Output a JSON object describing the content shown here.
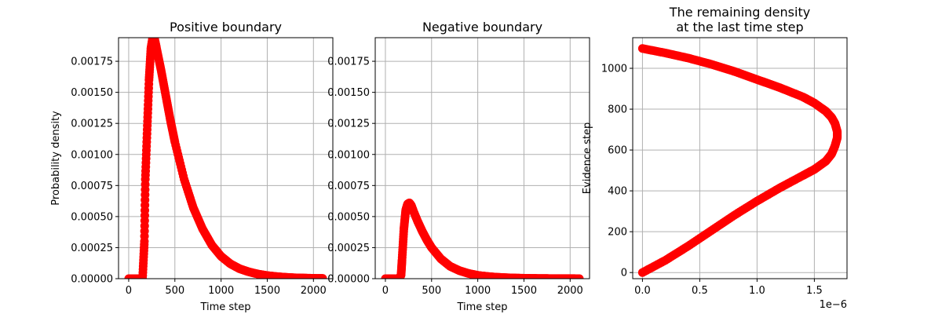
{
  "colors": {
    "series": "#ff0000",
    "grid": "#b0b0b0",
    "axis": "#000000",
    "background": "#ffffff"
  },
  "chart_data": [
    {
      "type": "scatter",
      "title": "Positive boundary",
      "title_lines": [
        "Positive boundary"
      ],
      "xlabel": "Time step",
      "ylabel": "Probability density",
      "xlim": [
        -110,
        2210
      ],
      "ylim": [
        0,
        0.00194
      ],
      "x_ticks": [
        0,
        500,
        1000,
        1500,
        2000
      ],
      "x_tick_labels": [
        "0",
        "500",
        "1000",
        "1500",
        "2000"
      ],
      "y_ticks": [
        0,
        0.00025,
        0.0005,
        0.00075,
        0.001,
        0.00125,
        0.0015,
        0.00175
      ],
      "y_tick_labels": [
        "0.00000",
        "0.00025",
        "0.00050",
        "0.00075",
        "0.00100",
        "0.00125",
        "0.00150",
        "0.00175"
      ],
      "grid": true,
      "series": [
        {
          "x": [
            0,
            100,
            150,
            170,
            180,
            200,
            220,
            240,
            260,
            280,
            300,
            350,
            400,
            450,
            500,
            600,
            700,
            800,
            900,
            1000,
            1100,
            1200,
            1300,
            1400,
            1500,
            1600,
            1700,
            1800,
            1900,
            2000,
            2100
          ],
          "y": [
            0,
            0,
            0,
            0.0003,
            0.0008,
            0.0012,
            0.0016,
            0.00185,
            0.00194,
            0.00193,
            0.00186,
            0.00168,
            0.00148,
            0.00128,
            0.0011,
            0.0008,
            0.00057,
            0.0004,
            0.00027,
            0.00018,
            0.00012,
            8e-05,
            5.5e-05,
            3.7e-05,
            2.5e-05,
            1.7e-05,
            1.1e-05,
            7e-06,
            5e-06,
            3e-06,
            2e-06
          ]
        }
      ]
    },
    {
      "type": "scatter",
      "title": "Negative boundary",
      "title_lines": [
        "Negative boundary"
      ],
      "xlabel": "Time step",
      "ylabel": "",
      "xlim": [
        -110,
        2210
      ],
      "ylim": [
        0,
        0.00194
      ],
      "x_ticks": [
        0,
        500,
        1000,
        1500,
        2000
      ],
      "x_tick_labels": [
        "0",
        "500",
        "1000",
        "1500",
        "2000"
      ],
      "y_ticks": [
        0,
        0.00025,
        0.0005,
        0.00075,
        0.001,
        0.00125,
        0.0015,
        0.00175
      ],
      "y_tick_labels": [
        "0.00000",
        "0.00025",
        "0.00050",
        "0.00075",
        "0.00100",
        "0.00125",
        "0.00150",
        "0.00175"
      ],
      "grid": true,
      "series": [
        {
          "x": [
            0,
            100,
            150,
            170,
            180,
            200,
            220,
            240,
            260,
            280,
            300,
            350,
            400,
            450,
            500,
            600,
            700,
            800,
            900,
            1000,
            1100,
            1200,
            1300,
            1400,
            1500,
            1600,
            1700,
            1800,
            1900,
            2000,
            2100
          ],
          "y": [
            0,
            0,
            0,
            3e-05,
            0.00015,
            0.0004,
            0.00055,
            0.0006,
            0.00061,
            0.00059,
            0.00055,
            0.00046,
            0.00038,
            0.00031,
            0.00025,
            0.00016,
            0.0001,
            6.5e-05,
            4.2e-05,
            2.7e-05,
            1.8e-05,
            1.2e-05,
            8e-06,
            5.3e-06,
            3.5e-06,
            2.3e-06,
            1.5e-06,
            1e-06,
            7e-07,
            5e-07,
            3e-07
          ]
        }
      ]
    },
    {
      "type": "scatter",
      "title": "The remaining density\nat the last time step",
      "title_lines": [
        "The remaining density",
        "at the last time step"
      ],
      "xlabel": "",
      "ylabel": "Evidence step",
      "xlim": [
        -8.5e-08,
        1.785e-06
      ],
      "ylim": [
        -30,
        1150
      ],
      "x_ticks": [
        0,
        5e-07,
        1e-06,
        1.5e-06
      ],
      "x_tick_labels": [
        "0.0",
        "0.5",
        "1.0",
        "1.5"
      ],
      "x_offset_label": "1e−6",
      "y_ticks": [
        0,
        200,
        400,
        600,
        800,
        1000
      ],
      "y_tick_labels": [
        "0",
        "200",
        "400",
        "600",
        "800",
        "1000"
      ],
      "grid": true,
      "series": [
        {
          "x": [
            0,
            2e-07,
            4e-07,
            6e-07,
            8e-07,
            1e-06,
            1.2e-06,
            1.4e-06,
            1.5e-06,
            1.6e-06,
            1.65e-06,
            1.68e-06,
            1.7e-06,
            1.7e-06,
            1.68e-06,
            1.65e-06,
            1.6e-06,
            1.5e-06,
            1.4e-06,
            1.2e-06,
            1e-06,
            8e-07,
            6e-07,
            4e-07,
            2e-07,
            0
          ],
          "y": [
            0,
            60,
            130,
            205,
            280,
            350,
            415,
            475,
            505,
            545,
            580,
            620,
            660,
            690,
            730,
            760,
            790,
            830,
            860,
            905,
            945,
            985,
            1020,
            1050,
            1075,
            1097
          ]
        }
      ]
    }
  ]
}
